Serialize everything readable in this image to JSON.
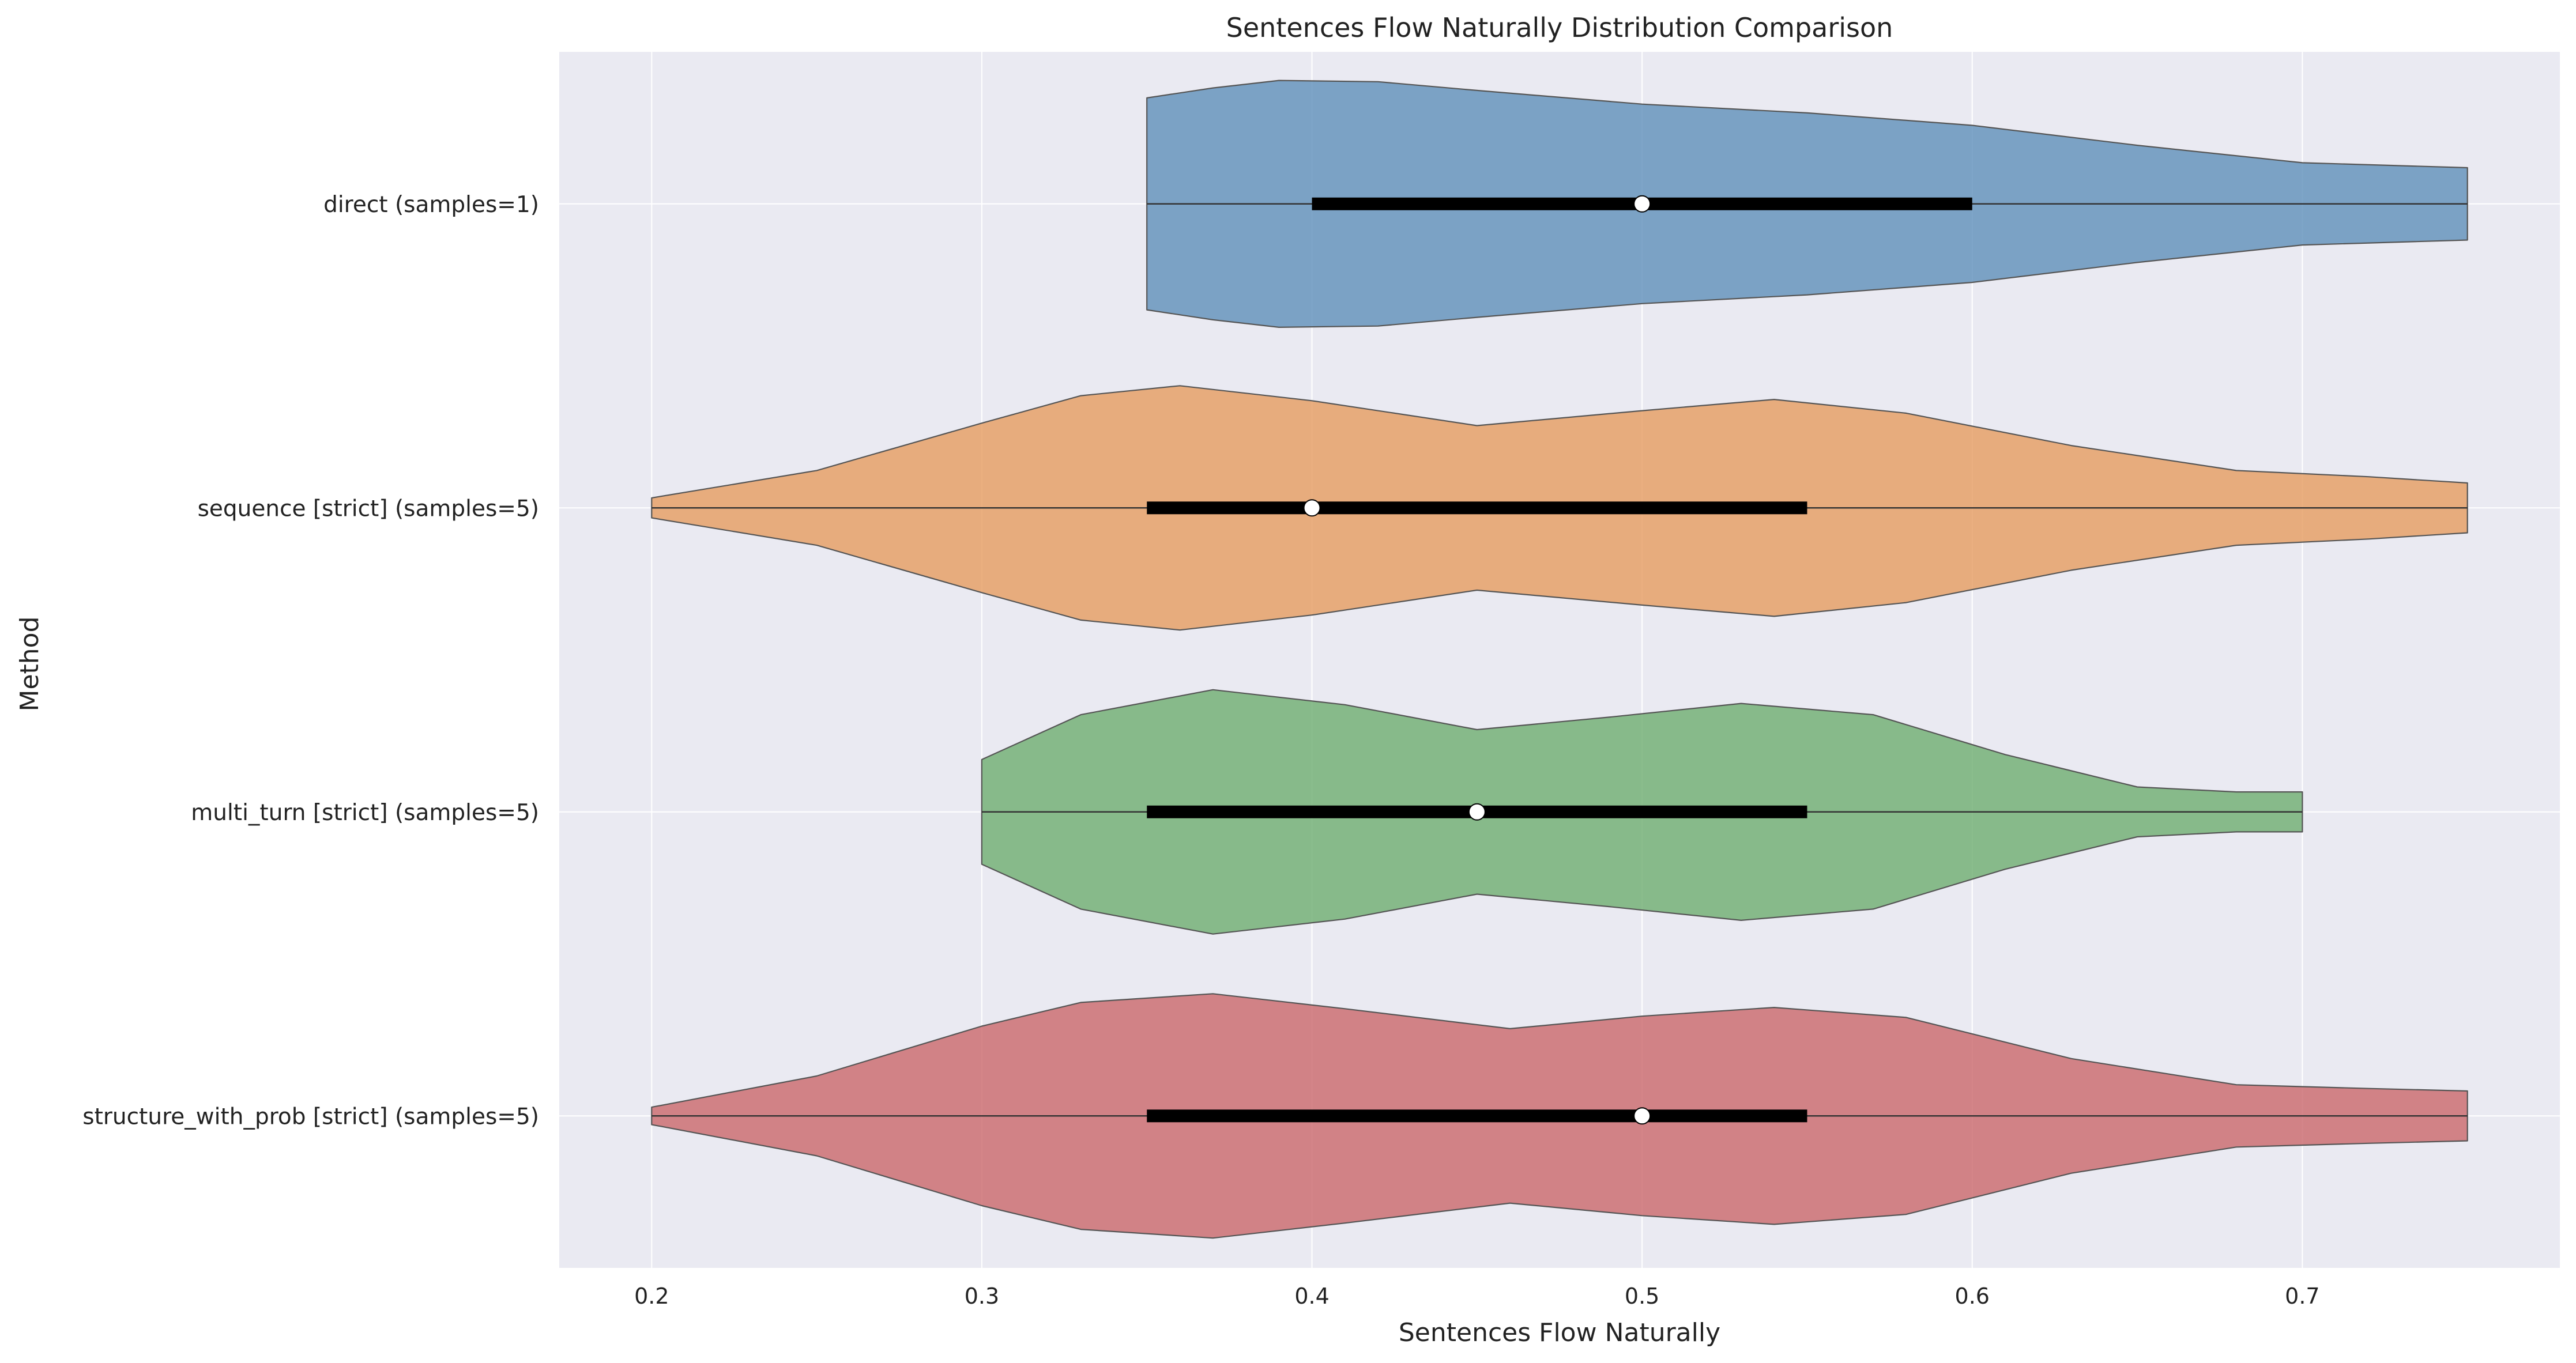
{
  "chart_data": {
    "type": "violin",
    "title": "Sentences Flow Naturally Distribution Comparison",
    "xlabel": "Sentences Flow Naturally",
    "ylabel": "Method",
    "xlim": [
      0.172,
      0.778
    ],
    "xticks": [
      "0.2",
      "0.3",
      "0.4",
      "0.5",
      "0.6",
      "0.7"
    ],
    "grid": true,
    "orientation": "horizontal",
    "categories": [
      "direct (samples=1)",
      "sequence [strict] (samples=5)",
      "multi_turn [strict] (samples=5)",
      "structure_with_prob [strict] (samples=5)"
    ],
    "series": [
      {
        "color": "#5b8db8",
        "range": [
          0.35,
          0.75
        ],
        "q1": 0.4,
        "median": 0.5,
        "q3": 0.6,
        "density": [
          [
            0.35,
            0.85
          ],
          [
            0.37,
            0.93
          ],
          [
            0.39,
            0.99
          ],
          [
            0.42,
            0.98
          ],
          [
            0.45,
            0.91
          ],
          [
            0.5,
            0.8
          ],
          [
            0.55,
            0.73
          ],
          [
            0.6,
            0.63
          ],
          [
            0.65,
            0.47
          ],
          [
            0.7,
            0.33
          ],
          [
            0.75,
            0.29
          ]
        ]
      },
      {
        "color": "#e69a5c",
        "range": [
          0.2,
          0.75
        ],
        "q1": 0.35,
        "median": 0.4,
        "q3": 0.55,
        "density": [
          [
            0.2,
            0.08
          ],
          [
            0.25,
            0.3
          ],
          [
            0.3,
            0.68
          ],
          [
            0.33,
            0.9
          ],
          [
            0.36,
            0.98
          ],
          [
            0.4,
            0.86
          ],
          [
            0.45,
            0.66
          ],
          [
            0.5,
            0.78
          ],
          [
            0.54,
            0.87
          ],
          [
            0.58,
            0.76
          ],
          [
            0.63,
            0.5
          ],
          [
            0.68,
            0.3
          ],
          [
            0.72,
            0.25
          ],
          [
            0.75,
            0.2
          ]
        ]
      },
      {
        "color": "#6aac6d",
        "range": [
          0.3,
          0.7
        ],
        "q1": 0.35,
        "median": 0.45,
        "q3": 0.55,
        "density": [
          [
            0.3,
            0.42
          ],
          [
            0.33,
            0.78
          ],
          [
            0.37,
            0.98
          ],
          [
            0.41,
            0.86
          ],
          [
            0.45,
            0.66
          ],
          [
            0.49,
            0.76
          ],
          [
            0.53,
            0.87
          ],
          [
            0.57,
            0.78
          ],
          [
            0.61,
            0.46
          ],
          [
            0.65,
            0.2
          ],
          [
            0.68,
            0.16
          ],
          [
            0.7,
            0.16
          ]
        ]
      },
      {
        "color": "#c96468",
        "range": [
          0.2,
          0.75
        ],
        "q1": 0.35,
        "median": 0.5,
        "q3": 0.55,
        "density": [
          [
            0.2,
            0.07
          ],
          [
            0.25,
            0.32
          ],
          [
            0.3,
            0.72
          ],
          [
            0.33,
            0.91
          ],
          [
            0.37,
            0.98
          ],
          [
            0.41,
            0.86
          ],
          [
            0.46,
            0.7
          ],
          [
            0.5,
            0.8
          ],
          [
            0.54,
            0.87
          ],
          [
            0.58,
            0.79
          ],
          [
            0.63,
            0.46
          ],
          [
            0.68,
            0.25
          ],
          [
            0.72,
            0.22
          ],
          [
            0.75,
            0.2
          ]
        ]
      }
    ]
  }
}
